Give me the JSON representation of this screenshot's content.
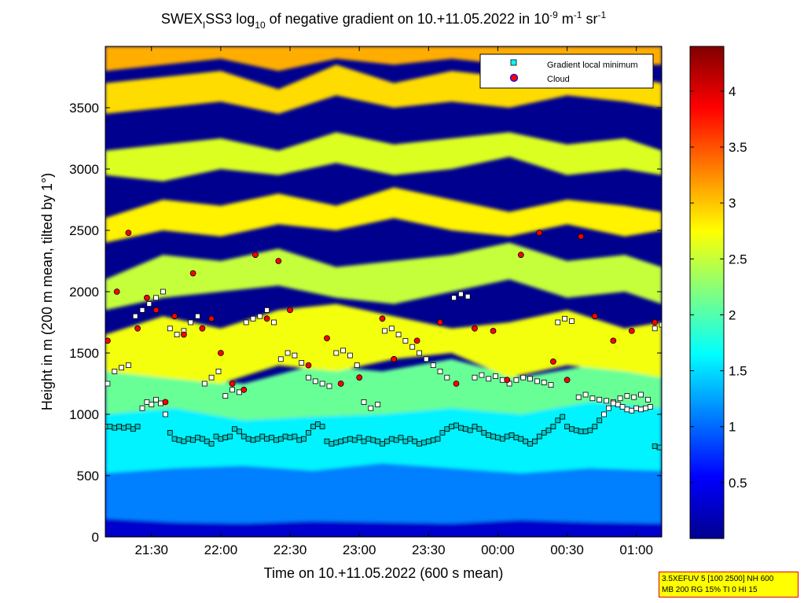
{
  "title": {
    "prefix": "SWEX",
    "sub": "I",
    "mid": "SS3 log",
    "sub2": "10",
    "text": " of negative gradient on 10.+11.05.2022 in 10",
    "exp1": "-9",
    "unit1": " m",
    "exp2": "-1",
    "unit2": " sr",
    "exp3": "-1"
  },
  "info_box": {
    "line1": "3.5XEFUV 5 [100 2500] NH 600",
    "line2": "MB 200 RG 15% TI 0 HI 15"
  },
  "chart_data": {
    "type": "heatmap",
    "xlabel": "Time on 10.+11.05.2022 (600 s mean)",
    "ylabel": "Height in m (200 m mean, tilted by 1°)",
    "x_ticks": [
      "21:30",
      "22:00",
      "22:30",
      "23:00",
      "23:30",
      "00:00",
      "00:30",
      "01:00"
    ],
    "x_tick_minutes": [
      90,
      120,
      150,
      180,
      210,
      240,
      270,
      300
    ],
    "xlim_minutes": [
      70,
      311
    ],
    "y_ticks": [
      0,
      500,
      1000,
      1500,
      2000,
      2500,
      3000,
      3500
    ],
    "ylim": [
      0,
      4000
    ],
    "colorbar": {
      "range": [
        0,
        4.4
      ],
      "ticks": [
        0.5,
        1,
        1.5,
        2,
        2.5,
        3,
        3.5,
        4
      ],
      "colors": [
        "#00008f",
        "#0000ff",
        "#0080ff",
        "#00ffff",
        "#80ff80",
        "#ffff00",
        "#ff8000",
        "#ff0000",
        "#800000"
      ]
    },
    "legend": {
      "placement": "top-right",
      "entries": [
        {
          "label": "Gradient local minimum",
          "marker": "square",
          "color": "#00ffff"
        },
        {
          "label": "Cloud",
          "marker": "circle",
          "color": "#ff0000"
        }
      ]
    },
    "layers": [
      {
        "name": "surface-low",
        "value": 0.3,
        "t": [
          70,
          100,
          130,
          160,
          190,
          220,
          250,
          280,
          311
        ],
        "lo": [
          0,
          0,
          0,
          0,
          0,
          0,
          0,
          0,
          0
        ],
        "hi": [
          150,
          120,
          110,
          130,
          120,
          110,
          140,
          120,
          110
        ]
      },
      {
        "name": "boundary-layer-blue",
        "value": 1.1,
        "t": [
          70,
          100,
          130,
          160,
          190,
          220,
          250,
          280,
          311
        ],
        "lo": [
          150,
          120,
          110,
          130,
          120,
          110,
          140,
          120,
          110
        ],
        "hi": [
          520,
          560,
          580,
          540,
          600,
          560,
          520,
          560,
          540
        ]
      },
      {
        "name": "boundary-layer-cyan",
        "value": 1.6,
        "t": [
          70,
          100,
          130,
          160,
          190,
          220,
          250,
          280,
          311
        ],
        "lo": [
          520,
          560,
          580,
          540,
          600,
          560,
          520,
          560,
          540
        ],
        "hi": [
          1000,
          1050,
          950,
          980,
          1000,
          1050,
          1000,
          1100,
          1050
        ]
      },
      {
        "name": "mixed-green",
        "value": 2.1,
        "t": [
          70,
          100,
          130,
          160,
          190,
          220,
          250,
          280,
          311
        ],
        "lo": [
          1000,
          1050,
          950,
          980,
          1000,
          1050,
          1000,
          1100,
          1050
        ],
        "hi": [
          1350,
          1300,
          1250,
          1400,
          1350,
          1450,
          1300,
          1400,
          1350
        ]
      },
      {
        "name": "layer-1500",
        "value": 2.7,
        "t": [
          70,
          95,
          120,
          145,
          170,
          195,
          220,
          245,
          270,
          295,
          311
        ],
        "lo": [
          1350,
          1300,
          1250,
          1400,
          1350,
          1450,
          1500,
          1300,
          1400,
          1350,
          1300
        ],
        "hi": [
          1650,
          1800,
          1700,
          1850,
          1900,
          1800,
          1700,
          1750,
          1850,
          1700,
          1750
        ]
      },
      {
        "name": "layer-2000",
        "value": 2.5,
        "t": [
          70,
          95,
          120,
          145,
          170,
          195,
          220,
          245,
          270,
          295,
          311
        ],
        "lo": [
          1850,
          1950,
          2000,
          2050,
          1950,
          1900,
          2000,
          2100,
          1950,
          2000,
          1900
        ],
        "hi": [
          2100,
          2300,
          2250,
          2350,
          2200,
          2250,
          2300,
          2400,
          2250,
          2300,
          2200
        ]
      },
      {
        "name": "layer-2500",
        "value": 2.8,
        "t": [
          70,
          95,
          120,
          145,
          170,
          195,
          220,
          245,
          270,
          295,
          311
        ],
        "lo": [
          2400,
          2500,
          2450,
          2550,
          2500,
          2600,
          2500,
          2450,
          2550,
          2450,
          2500
        ],
        "hi": [
          2600,
          2750,
          2700,
          2800,
          2700,
          2850,
          2750,
          2650,
          2750,
          2700,
          2650
        ]
      },
      {
        "name": "layer-3000",
        "value": 2.6,
        "t": [
          70,
          95,
          120,
          145,
          170,
          195,
          220,
          245,
          270,
          295,
          311
        ],
        "lo": [
          2950,
          2900,
          3000,
          2950,
          3050,
          2950,
          3000,
          3100,
          2950,
          3000,
          2950
        ],
        "hi": [
          3150,
          3200,
          3250,
          3150,
          3300,
          3200,
          3250,
          3300,
          3200,
          3250,
          3150
        ]
      },
      {
        "name": "layer-3500",
        "value": 2.9,
        "t": [
          70,
          95,
          120,
          145,
          170,
          195,
          220,
          245,
          270,
          295,
          311
        ],
        "lo": [
          3450,
          3500,
          3550,
          3450,
          3600,
          3500,
          3550,
          3500,
          3600,
          3550,
          3500
        ],
        "hi": [
          3700,
          3750,
          3800,
          3650,
          3850,
          3700,
          3800,
          3750,
          3800,
          3750,
          3700
        ]
      },
      {
        "name": "top-layer",
        "value": 3.1,
        "t": [
          70,
          95,
          120,
          145,
          170,
          195,
          220,
          245,
          270,
          295,
          311
        ],
        "lo": [
          3800,
          3850,
          3900,
          3800,
          3900,
          3850,
          3900,
          3850,
          3900,
          3850,
          3850
        ],
        "hi": [
          4000,
          4000,
          4000,
          4000,
          4000,
          4000,
          4000,
          4000,
          4000,
          4000,
          4000
        ]
      }
    ],
    "series": [
      {
        "name": "Gradient local minimum",
        "marker": "square",
        "t": [
          70,
          72,
          74,
          76,
          78,
          80,
          82,
          84,
          86,
          88,
          90,
          92,
          94,
          96,
          98,
          100,
          102,
          104,
          106,
          108,
          110,
          112,
          114,
          116,
          118,
          120,
          122,
          124,
          126,
          128,
          130,
          132,
          134,
          136,
          138,
          140,
          142,
          144,
          146,
          148,
          150,
          152,
          154,
          156,
          158,
          160,
          162,
          164,
          166,
          168,
          170,
          172,
          174,
          176,
          178,
          180,
          182,
          184,
          186,
          188,
          190,
          192,
          194,
          196,
          198,
          200,
          202,
          204,
          206,
          208,
          210,
          212,
          214,
          216,
          218,
          220,
          222,
          224,
          226,
          228,
          230,
          232,
          234,
          236,
          238,
          240,
          242,
          244,
          246,
          248,
          250,
          252,
          254,
          256,
          258,
          260,
          262,
          264,
          266,
          268,
          270,
          272,
          274,
          276,
          278,
          280,
          282,
          284,
          286,
          288,
          290,
          292,
          294,
          296,
          298,
          300,
          302,
          304,
          306,
          308,
          310
        ],
        "y": [
          900,
          900,
          890,
          900,
          890,
          900,
          880,
          900,
          1050,
          1100,
          1080,
          1120,
          1090,
          1000,
          850,
          800,
          790,
          780,
          800,
          790,
          810,
          800,
          780,
          760,
          820,
          800,
          810,
          820,
          880,
          860,
          820,
          800,
          790,
          800,
          820,
          800,
          810,
          790,
          800,
          820,
          810,
          820,
          790,
          800,
          850,
          900,
          920,
          900,
          780,
          760,
          770,
          780,
          790,
          800,
          790,
          810,
          780,
          800,
          790,
          780,
          760,
          780,
          800,
          790,
          810,
          780,
          800,
          780,
          760,
          770,
          780,
          790,
          800,
          850,
          880,
          900,
          910,
          890,
          880,
          870,
          900,
          880,
          850,
          830,
          820,
          810,
          800,
          820,
          830,
          810,
          800,
          780,
          760,
          780,
          820,
          850,
          870,
          900,
          950,
          980,
          900,
          880,
          870,
          860,
          860,
          870,
          900,
          950,
          1000,
          1050,
          1100,
          1080,
          1060,
          1040,
          1030,
          1050,
          1040,
          1050,
          1060,
          740,
          730
        ]
      },
      {
        "name": "Gradient local minimum upper",
        "marker": "square",
        "t": [
          71,
          74,
          77,
          80,
          83,
          86,
          89,
          92,
          95,
          98,
          101,
          104,
          107,
          110,
          113,
          116,
          119,
          122,
          125,
          128,
          131,
          134,
          137,
          140,
          143,
          146,
          149,
          152,
          155,
          158,
          161,
          164,
          167,
          170,
          173,
          176,
          179,
          182,
          185,
          188,
          191,
          194,
          197,
          200,
          203,
          206,
          209,
          212,
          215,
          218,
          221,
          224,
          227,
          230,
          233,
          236,
          239,
          242,
          245,
          248,
          251,
          254,
          257,
          260,
          263,
          266,
          269,
          272,
          275,
          278,
          281,
          284,
          287,
          290,
          293,
          296,
          299,
          302,
          305,
          308,
          311
        ],
        "y": [
          1250,
          1350,
          1380,
          1400,
          1800,
          1850,
          1900,
          1950,
          2000,
          1700,
          1650,
          1680,
          1750,
          1800,
          1250,
          1300,
          1350,
          1150,
          1200,
          1180,
          1750,
          1780,
          1800,
          1850,
          1750,
          1450,
          1500,
          1480,
          1420,
          1300,
          1270,
          1250,
          1230,
          1500,
          1520,
          1480,
          1400,
          1100,
          1050,
          1080,
          1680,
          1700,
          1650,
          1600,
          1550,
          1500,
          1450,
          1400,
          1350,
          1300,
          1950,
          1980,
          1960,
          1300,
          1320,
          1290,
          1310,
          1280,
          1250,
          1280,
          1300,
          1290,
          1270,
          1260,
          1240,
          1750,
          1780,
          1760,
          1140,
          1160,
          1130,
          1120,
          1110,
          1090,
          1130,
          1150,
          1140,
          1160,
          1120,
          1700,
          1730
        ]
      },
      {
        "name": "Cloud",
        "marker": "circle",
        "t": [
          71,
          75,
          80,
          84,
          88,
          92,
          96,
          100,
          104,
          108,
          112,
          116,
          120,
          125,
          130,
          135,
          140,
          145,
          150,
          158,
          166,
          172,
          180,
          190,
          195,
          205,
          215,
          222,
          230,
          238,
          244,
          250,
          258,
          264,
          270,
          276,
          282,
          290,
          298,
          308
        ],
        "y": [
          1600,
          2000,
          2480,
          1700,
          1950,
          1850,
          1100,
          1800,
          1650,
          2150,
          1700,
          1780,
          1500,
          1250,
          1200,
          2300,
          1780,
          2250,
          1850,
          1400,
          1620,
          1250,
          1300,
          1780,
          1450,
          1600,
          1750,
          1250,
          1700,
          1680,
          1280,
          2300,
          2480,
          1430,
          1280,
          2450,
          1800,
          1600,
          1680,
          1750
        ]
      }
    ]
  }
}
